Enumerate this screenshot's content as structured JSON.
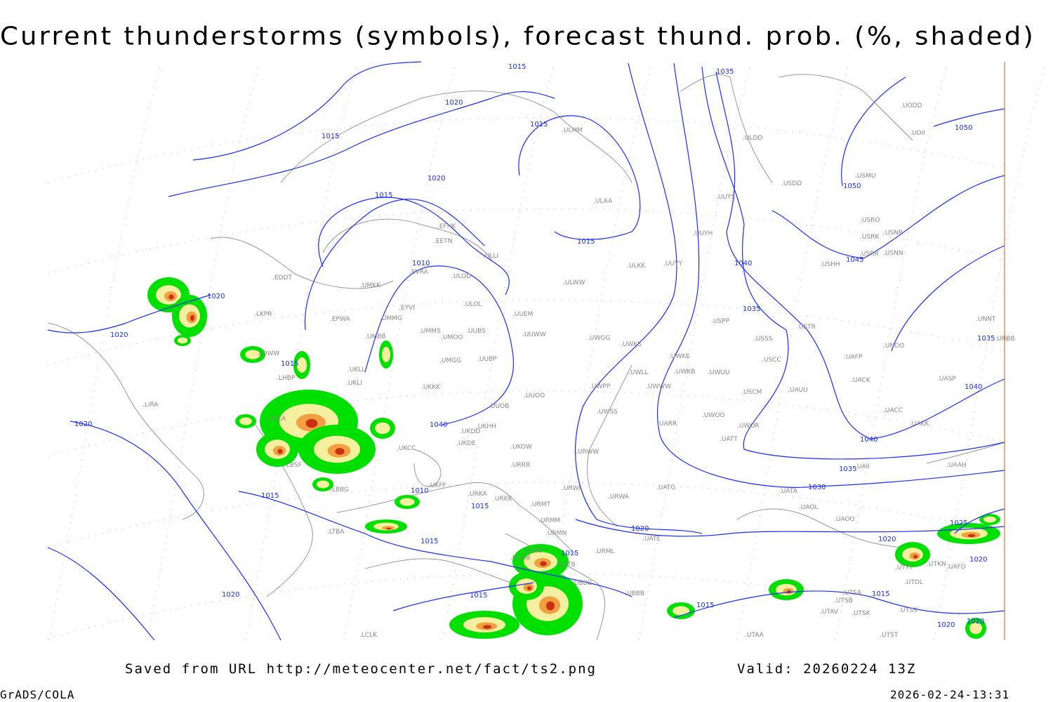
{
  "title": "Current thunderstorms (symbols), forecast thund. prob. (%, shaded)",
  "footer": {
    "source": "Saved from URL http://meteocenter.net/fact/ts2.png",
    "valid": "Valid: 20260224 13Z",
    "software": "GrADS/COLA",
    "timestamp": "2026-02-24-13:31"
  },
  "colors": {
    "isobar": "#1a2cff",
    "coastline": "#999999",
    "prob_low": "#00e000",
    "prob_mid": "#f5f0a0",
    "prob_high": "#f0a040",
    "prob_max": "#c83010",
    "frame_edge": "#d05020"
  },
  "stations": [
    "ULMM",
    "ULDD",
    "UODD",
    "UOII",
    "USMU",
    "USDD",
    "UUYS",
    "ULAA",
    "USRO",
    "USRK",
    "USNR",
    "USRR",
    "USNN",
    "USHH",
    "UUYH",
    "EFHK",
    "EETN",
    "ULLI",
    "ULKK",
    "UUYY",
    "EVRA",
    "ULOD",
    "ULWW",
    "EDDT",
    "UMKK",
    "EYVI",
    "ULOL",
    "UMMG",
    "EPWA",
    "UUEM",
    "LKPR",
    "USPP",
    "USTR",
    "UMMS",
    "UMOO",
    "UUBS",
    "UUWW",
    "UWGG",
    "UWKS",
    "USSS",
    "UMBB",
    "LOWW",
    "UWKE",
    "USCC",
    "UMGG",
    "UUBP",
    "UKLL",
    "LHBP",
    "UWLL",
    "UWKB",
    "UWUU",
    "UACK",
    "UASP",
    "UKLI",
    "UKKK",
    "UUOO",
    "UWPP",
    "UWWW",
    "USCM",
    "UAUU",
    "UUOB",
    "UWSS",
    "UARR",
    "UWOO",
    "UWOR",
    "UKDD",
    "UKHH",
    "UAKK",
    "UACC",
    "UNOO",
    "UAFP",
    "UNNT",
    "UNBB",
    "LIRA",
    "LDZA",
    "UKDE",
    "UKOW",
    "URWW",
    "UATT",
    "UKCC",
    "UKFF",
    "URRR",
    "URKK",
    "URKA",
    "URWI",
    "UATG",
    "URWA",
    "UATA",
    "UAOL",
    "UAOO",
    "URMT",
    "URMM",
    "URMN",
    "UATE",
    "URML",
    "UGKO",
    "UGSB",
    "UGTB",
    "UBBB",
    "UBBG",
    "UTAA",
    "UTSA",
    "UTSB",
    "UTAV",
    "UTSK",
    "UTDL",
    "UTTT",
    "UTKN",
    "UAFO",
    "UTSS",
    "UTST",
    "LCLK",
    "LTBA",
    "LBBG",
    "LBSF",
    "UAAH",
    "UAII"
  ],
  "isobar_labels": [
    "1015",
    "1035",
    "1020",
    "1015",
    "1015",
    "1020",
    "1015",
    "1050",
    "1050",
    "1015",
    "1045",
    "1010",
    "1040",
    "1020",
    "1035",
    "1020",
    "1035",
    "1015",
    "1040",
    "1020",
    "1040",
    "1040",
    "1035",
    "1030",
    "1010",
    "1015",
    "1015",
    "1025",
    "1020",
    "1020",
    "1015",
    "1015",
    "1020",
    "1020",
    "1015",
    "1015",
    "1015",
    "1020",
    "1020"
  ]
}
